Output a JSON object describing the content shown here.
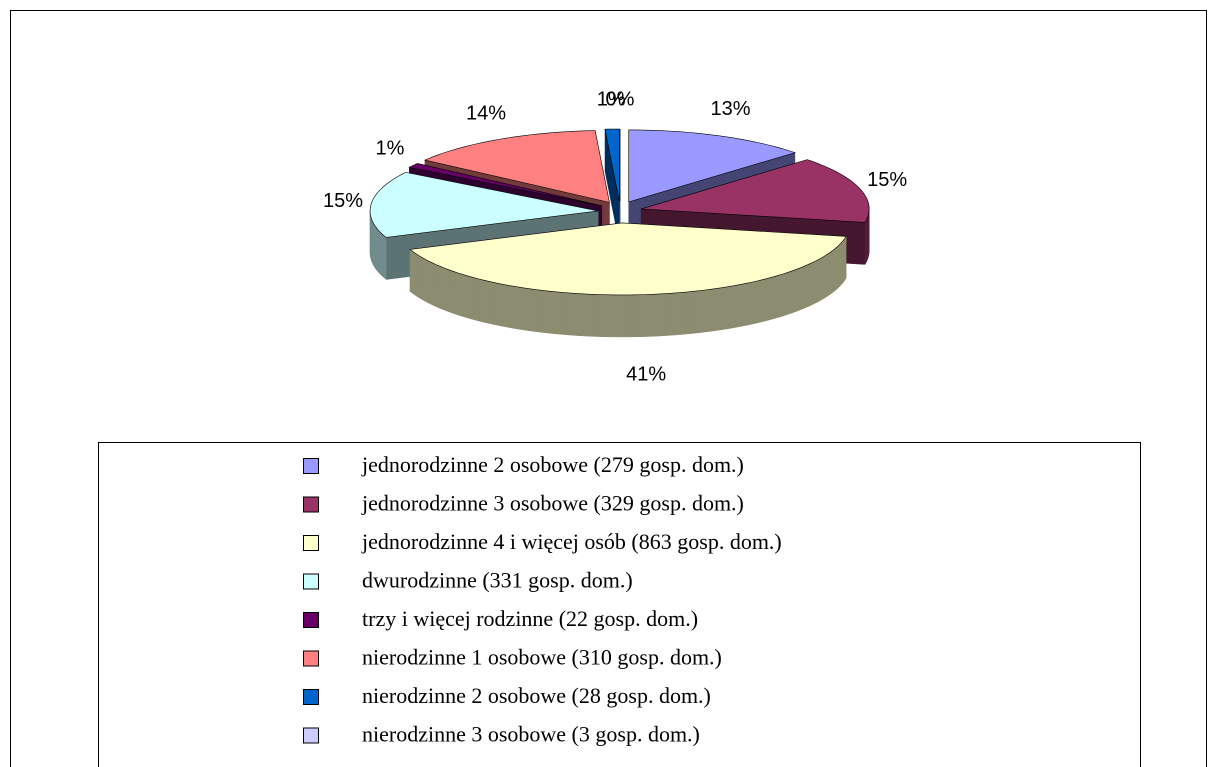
{
  "chart_data": {
    "type": "pie",
    "categories": [
      "jednorodzinne 2 osobowe (279 gosp. dom.)",
      "jednorodzinne 3 osobowe (329 gosp. dom.)",
      "jednorodzinne 4 i więcej osób (863 gosp. dom.)",
      "dwurodzinne (331 gosp. dom.)",
      "trzy i więcej rodzinne (22 gosp. dom.)",
      "nierodzinne 1 osobowe (310 gosp. dom.)",
      "nierodzinne 2 osobowe (28 gosp. dom.)",
      "nierodzinne 3 osobowe (3 gosp. dom.)"
    ],
    "values": [
      13,
      15,
      41,
      15,
      1,
      14,
      1,
      0
    ],
    "value_labels": [
      "13%",
      "15%",
      "41%",
      "15%",
      "1%",
      "14%",
      "1%",
      "0%"
    ],
    "colors": [
      "#9999ff",
      "#993366",
      "#ffffcc",
      "#ccffff",
      "#660066",
      "#ff8080",
      "#0066cc",
      "#ccccff"
    ],
    "legend": "bottom"
  }
}
